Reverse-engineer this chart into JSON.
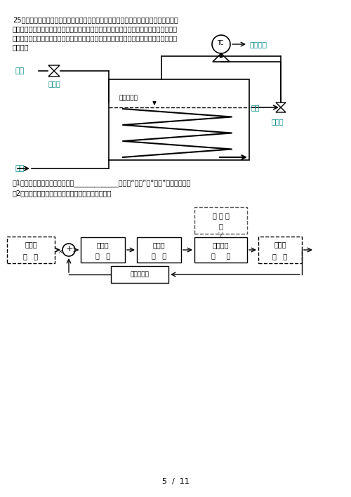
{
  "bg_color": "#ffffff",
  "text_color": "#000000",
  "teal_color": "#008B8B",
  "text_lines": [
    "25、如图是一个蘸汽加热的热水槽，冷水流入到水槽内，通过槽内蛇形盘管进行加热，加",
    "热后的热水流出热水槽。如果冷水流量加大，水槽内的温度下降，蘸汽阀开大，加大蘸汽的",
    "流量，冷水流量变小，加热槽水温上升，蘸汽阀门关小，蘸汽流量变小。控制加热槽内的温",
    "度稳定。"
  ],
  "q1_text": "（1）蘸汽加热水槽控制系统属于_____________（选填“开环”或“闭环”）控制系统。",
  "q2_text": "（2）请补充完整蘸汽加热水槽自动控制系统方框图。",
  "page_text": "5  /  11"
}
